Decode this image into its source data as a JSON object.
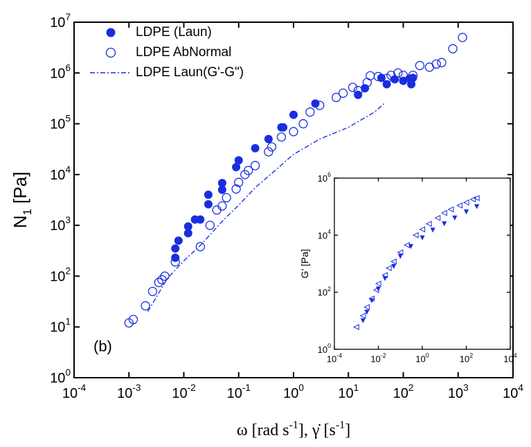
{
  "chart_data": [
    {
      "type": "scatter",
      "log_x": true,
      "log_y": true,
      "xlabel": [
        "ω [rad s",
        "-1",
        "], γ̇ [s",
        "-1",
        "]"
      ],
      "ylabel": [
        "N",
        "1",
        " [Pa]"
      ],
      "annotation": "(b)",
      "legend": "upper left",
      "xlim": [
        0.0001,
        10000
      ],
      "ylim": [
        1,
        10000000
      ],
      "xticks": [
        {
          "value": 0.0001,
          "label": "10",
          "sup": "-4"
        },
        {
          "value": 0.001,
          "label": "10",
          "sup": "-3"
        },
        {
          "value": 0.01,
          "label": "10",
          "sup": "-2"
        },
        {
          "value": 0.1,
          "label": "10",
          "sup": "-1"
        },
        {
          "value": 1,
          "label": "10",
          "sup": "0"
        },
        {
          "value": 10,
          "label": "10",
          "sup": "1"
        },
        {
          "value": 100,
          "label": "10",
          "sup": "2"
        },
        {
          "value": 1000,
          "label": "10",
          "sup": "3"
        },
        {
          "value": 10000,
          "label": "10",
          "sup": "4"
        }
      ],
      "yticks": [
        {
          "value": 1,
          "label": "10",
          "sup": "0"
        },
        {
          "value": 10,
          "label": "10",
          "sup": "1"
        },
        {
          "value": 100,
          "label": "10",
          "sup": "2"
        },
        {
          "value": 1000,
          "label": "10",
          "sup": "3"
        },
        {
          "value": 10000,
          "label": "10",
          "sup": "4"
        },
        {
          "value": 100000,
          "label": "10",
          "sup": "5"
        },
        {
          "value": 1000000,
          "label": "10",
          "sup": "6"
        },
        {
          "value": 10000000,
          "label": "10",
          "sup": "7"
        }
      ],
      "series": [
        {
          "name": "LDPE (Laun)",
          "color": "#1a2ee0",
          "marker": "circle-filled",
          "x": [
            0.007,
            0.007,
            0.008,
            0.012,
            0.012,
            0.016,
            0.02,
            0.028,
            0.028,
            0.05,
            0.05,
            0.09,
            0.1,
            0.2,
            0.35,
            0.6,
            0.65,
            1.0,
            2.5,
            15,
            20,
            40,
            50,
            70,
            100,
            130,
            140,
            150
          ],
          "values": [
            230,
            350,
            500,
            700,
            950,
            1300,
            1300,
            2600,
            4000,
            5000,
            6800,
            14000,
            19000,
            33000,
            50000,
            85000,
            85000,
            150000,
            250000,
            370000,
            500000,
            800000,
            600000,
            750000,
            700000,
            780000,
            600000,
            800000
          ]
        },
        {
          "name": "LDPE AbNormal",
          "color": "#1a2ee0",
          "marker": "circle-open",
          "x": [
            0.001,
            0.0012,
            0.002,
            0.0027,
            0.0035,
            0.004,
            0.0045,
            0.007,
            0.02,
            0.03,
            0.04,
            0.05,
            0.06,
            0.09,
            0.1,
            0.13,
            0.15,
            0.2,
            0.35,
            0.4,
            0.6,
            1.0,
            1.5,
            2,
            3,
            6,
            8,
            12,
            15,
            22,
            25,
            35,
            50,
            60,
            80,
            100,
            150,
            200,
            300,
            400,
            500,
            800,
            1200
          ],
          "values": [
            12,
            14,
            26,
            50,
            75,
            85,
            100,
            190,
            380,
            1000,
            2000,
            2400,
            3500,
            5200,
            7000,
            10000,
            12000,
            15000,
            28000,
            35000,
            55000,
            70000,
            100000,
            170000,
            230000,
            330000,
            400000,
            520000,
            450000,
            650000,
            880000,
            850000,
            780000,
            900000,
            1000000,
            900000,
            900000,
            1400000,
            1300000,
            1500000,
            1600000,
            3000000,
            5000000
          ]
        },
        {
          "name": "LDPE Laun(G'-G\")",
          "color": "#1a2ee0",
          "marker": "dash-dot",
          "x": [
            0.0022,
            0.003,
            0.005,
            0.01,
            0.02,
            0.05,
            0.1,
            0.2,
            0.5,
            1,
            3,
            10,
            30,
            45
          ],
          "values": [
            20,
            35,
            90,
            200,
            400,
            1200,
            2500,
            5500,
            13000,
            25000,
            50000,
            85000,
            170000,
            250000
          ]
        }
      ]
    },
    {
      "type": "scatter",
      "log_x": true,
      "log_y": true,
      "ylabel": [
        "G' [Pa]"
      ],
      "xlim": [
        0.0001,
        10000
      ],
      "ylim": [
        1,
        1000000
      ],
      "xticks": [
        {
          "value": 0.0001,
          "label": "10",
          "sup": "-4"
        },
        {
          "value": 0.01,
          "label": "10",
          "sup": "-2"
        },
        {
          "value": 1,
          "label": "10",
          "sup": "0"
        },
        {
          "value": 100,
          "label": "10",
          "sup": "2"
        },
        {
          "value": 10000,
          "label": "10",
          "sup": "4"
        }
      ],
      "yticks": [
        {
          "value": 1,
          "label": "10",
          "sup": "0"
        },
        {
          "value": 100,
          "label": "10",
          "sup": "2"
        },
        {
          "value": 10000,
          "label": "10",
          "sup": "4"
        },
        {
          "value": 1000000,
          "label": "10",
          "sup": "6"
        }
      ],
      "series": [
        {
          "color": "#1a2ee0",
          "marker": "tri-left-open",
          "x": [
            0.001,
            0.002,
            0.003,
            0.005,
            0.008,
            0.01,
            0.02,
            0.03,
            0.05,
            0.1,
            0.2,
            0.5,
            1,
            2,
            5,
            10,
            20,
            50,
            100,
            200,
            300
          ],
          "values": [
            6,
            15,
            30,
            60,
            120,
            200,
            400,
            700,
            1200,
            2500,
            4500,
            10000,
            16000,
            25000,
            40000,
            60000,
            80000,
            110000,
            140000,
            180000,
            200000
          ]
        },
        {
          "color": "#1a2ee0",
          "marker": "tri-down-filled",
          "x": [
            0.002,
            0.003,
            0.005,
            0.01,
            0.02,
            0.05,
            0.1,
            0.3,
            1,
            3,
            10,
            30,
            100,
            300
          ],
          "values": [
            10,
            20,
            50,
            130,
            300,
            800,
            1800,
            4000,
            8000,
            15000,
            25000,
            40000,
            65000,
            100000
          ]
        }
      ]
    }
  ]
}
